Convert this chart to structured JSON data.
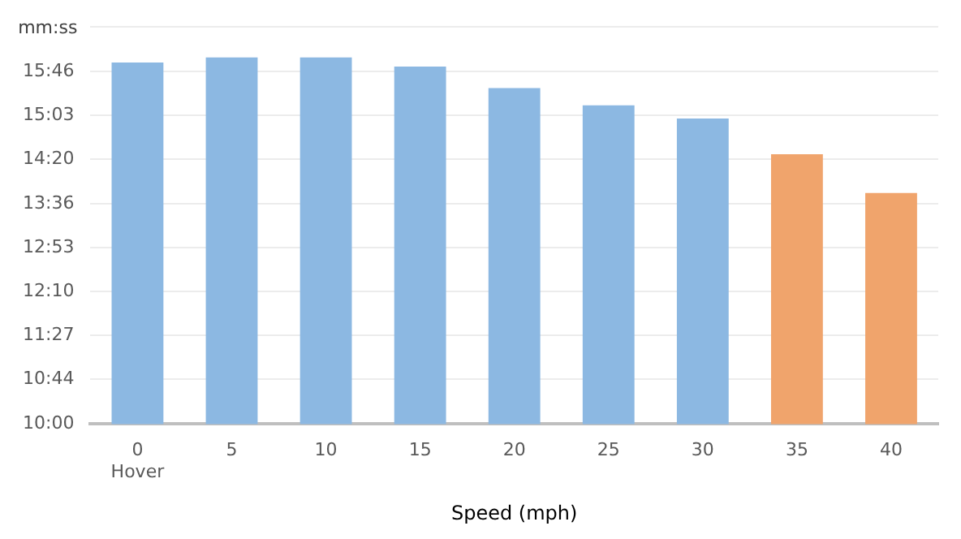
{
  "chart_data": {
    "type": "bar",
    "ylabel": "mm:ss",
    "xlabel": "Speed (mph)",
    "categories": [
      "0\nHover",
      "5",
      "10",
      "15",
      "20",
      "25",
      "30",
      "35",
      "40"
    ],
    "values": [
      955,
      960,
      960,
      951,
      930,
      913,
      900,
      865,
      827
    ],
    "colors": [
      "#8cb8e2",
      "#8cb8e2",
      "#8cb8e2",
      "#8cb8e2",
      "#8cb8e2",
      "#8cb8e2",
      "#8cb8e2",
      "#f0a46c",
      "#f0a46c"
    ],
    "ylim": [
      600,
      990
    ],
    "yticks": [
      {
        "value": 600,
        "label": "10:00"
      },
      {
        "value": 644,
        "label": "10:44"
      },
      {
        "value": 687,
        "label": "11:27"
      },
      {
        "value": 730,
        "label": "12:10"
      },
      {
        "value": 773,
        "label": "12:53"
      },
      {
        "value": 816,
        "label": "13:36"
      },
      {
        "value": 860,
        "label": "14:20"
      },
      {
        "value": 903,
        "label": "15:03"
      },
      {
        "value": 946,
        "label": "15:46"
      },
      {
        "value": 990,
        "label": null
      }
    ],
    "grid": "y",
    "legend": false
  }
}
